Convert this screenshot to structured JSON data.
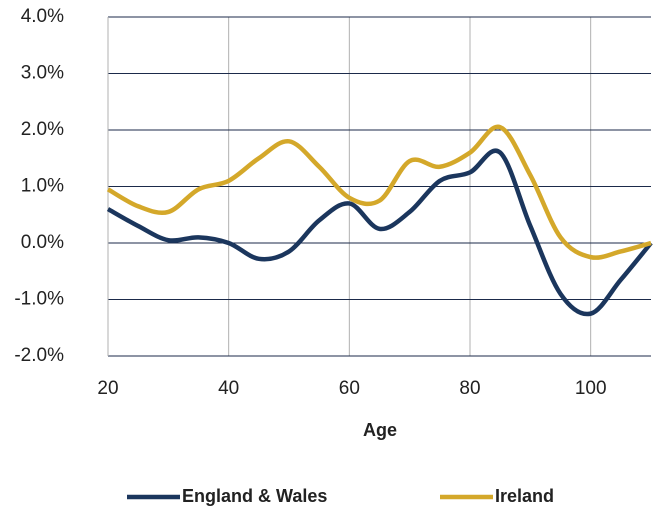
{
  "chart_data": {
    "type": "line",
    "x": [
      20,
      25,
      30,
      35,
      40,
      45,
      50,
      55,
      60,
      65,
      70,
      75,
      80,
      85,
      90,
      95,
      100,
      105,
      110
    ],
    "series": [
      {
        "name": "England & Wales",
        "color": "#1b365d",
        "values": [
          0.6,
          0.3,
          0.05,
          0.1,
          0.0,
          -0.28,
          -0.15,
          0.4,
          0.7,
          0.25,
          0.55,
          1.1,
          1.25,
          1.6,
          0.3,
          -0.9,
          -1.25,
          -0.65,
          0.0
        ]
      },
      {
        "name": "Ireland",
        "color": "#d4a82a",
        "values": [
          0.95,
          0.65,
          0.55,
          0.95,
          1.1,
          1.5,
          1.8,
          1.35,
          0.8,
          0.75,
          1.45,
          1.35,
          1.6,
          2.05,
          1.2,
          0.1,
          -0.25,
          -0.15,
          0.0
        ]
      }
    ],
    "x_label": "Age",
    "xlim": [
      20,
      110
    ],
    "xticks": [
      20,
      40,
      60,
      80,
      100
    ],
    "ylim": [
      -2,
      4
    ],
    "yticks": [
      {
        "value": -2,
        "label": "-2.0%"
      },
      {
        "value": -1,
        "label": "-1.0%"
      },
      {
        "value": 0,
        "label": "0.0%"
      },
      {
        "value": 1,
        "label": "1.0%"
      },
      {
        "value": 2,
        "label": "2.0%"
      },
      {
        "value": 3,
        "label": "3.0%"
      },
      {
        "value": 4,
        "label": "4.0%"
      }
    ],
    "grid": true,
    "legend": "bottom"
  }
}
